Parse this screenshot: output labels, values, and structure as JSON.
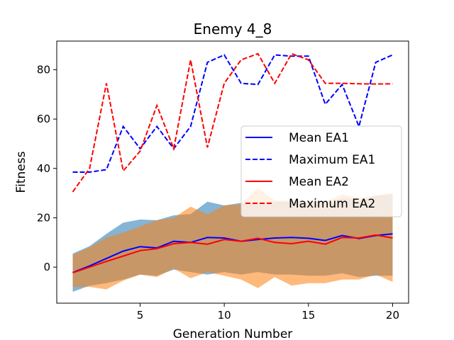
{
  "chart_data": {
    "type": "line",
    "title": "Enemy 4_8",
    "xlabel": "Generation Number",
    "ylabel": "Fitness",
    "xlim": [
      0.05,
      20.95
    ],
    "ylim": [
      -14.6,
      91.6
    ],
    "xticks": [
      5,
      10,
      15,
      20
    ],
    "yticks": [
      0,
      20,
      40,
      60,
      80
    ],
    "grid": false,
    "legend_position": "center-right",
    "x": [
      1,
      2,
      3,
      4,
      5,
      6,
      7,
      8,
      9,
      10,
      11,
      12,
      13,
      14,
      15,
      16,
      17,
      18,
      19,
      20
    ],
    "series": [
      {
        "name": "Mean EA1",
        "color": "#0000ff",
        "dash": "solid",
        "values": [
          -2.2,
          0.5,
          3.5,
          6.5,
          8.3,
          7.8,
          10.5,
          10.0,
          12.0,
          11.8,
          10.5,
          11.2,
          11.8,
          12.0,
          11.7,
          10.8,
          12.8,
          11.6,
          12.8,
          13.5
        ],
        "band": {
          "color": "#1f77b4",
          "upper": [
            5.5,
            8.5,
            13.5,
            18.0,
            19.3,
            19.0,
            21.0,
            21.5,
            26.5,
            25.0,
            26.0,
            26.0,
            26.5,
            26.5,
            26.0,
            26.0,
            28.0,
            27.0,
            29.0,
            29.5
          ],
          "lower": [
            -10.0,
            -7.5,
            -6.5,
            -5.0,
            -3.0,
            -3.5,
            -1.0,
            -2.0,
            -3.0,
            -2.0,
            -3.0,
            -2.0,
            -3.0,
            -3.0,
            -3.5,
            -3.5,
            -2.5,
            -4.0,
            -3.5,
            -3.5
          ]
        }
      },
      {
        "name": "Maximum EA1",
        "color": "#0000ff",
        "dash": "dashed",
        "values": [
          38.5,
          38.5,
          39.5,
          57.0,
          48.0,
          57.0,
          48.0,
          57.0,
          83.0,
          86.0,
          74.5,
          74.0,
          86.0,
          85.5,
          85.5,
          66.0,
          74.0,
          57.0,
          83.0,
          86.0
        ]
      },
      {
        "name": "Mean EA2",
        "color": "#ff0000",
        "dash": "solid",
        "values": [
          -2.3,
          0.0,
          2.3,
          4.5,
          6.7,
          7.5,
          9.5,
          10.0,
          9.3,
          11.2,
          10.5,
          11.7,
          10.0,
          9.5,
          10.5,
          9.3,
          12.0,
          11.8,
          13.0,
          11.8
        ]
      },
      {
        "name": "Maximum EA2",
        "color": "#ff0000",
        "dash": "dashed",
        "values": [
          30.5,
          40.0,
          74.5,
          39.0,
          47.0,
          65.5,
          48.0,
          84.0,
          48.5,
          74.5,
          84.0,
          86.5,
          74.5,
          86.5,
          84.0,
          74.5,
          74.5,
          74.3,
          74.2,
          74.3
        ],
        "band": {
          "color": "#ff7f0e",
          "upper": [
            5.0,
            8.0,
            12.0,
            14.0,
            16.5,
            19.0,
            20.0,
            24.5,
            21.5,
            25.0,
            25.5,
            32.0,
            27.0,
            27.0,
            27.0,
            26.5,
            29.5,
            28.0,
            29.0,
            30.0
          ],
          "lower": [
            -8.0,
            -8.0,
            -9.0,
            -5.5,
            -3.0,
            -4.0,
            -0.5,
            -4.5,
            -2.0,
            -3.5,
            -5.0,
            -8.5,
            -4.0,
            -7.5,
            -6.5,
            -6.5,
            -5.0,
            -5.0,
            -3.0,
            -6.0
          ]
        }
      }
    ]
  }
}
